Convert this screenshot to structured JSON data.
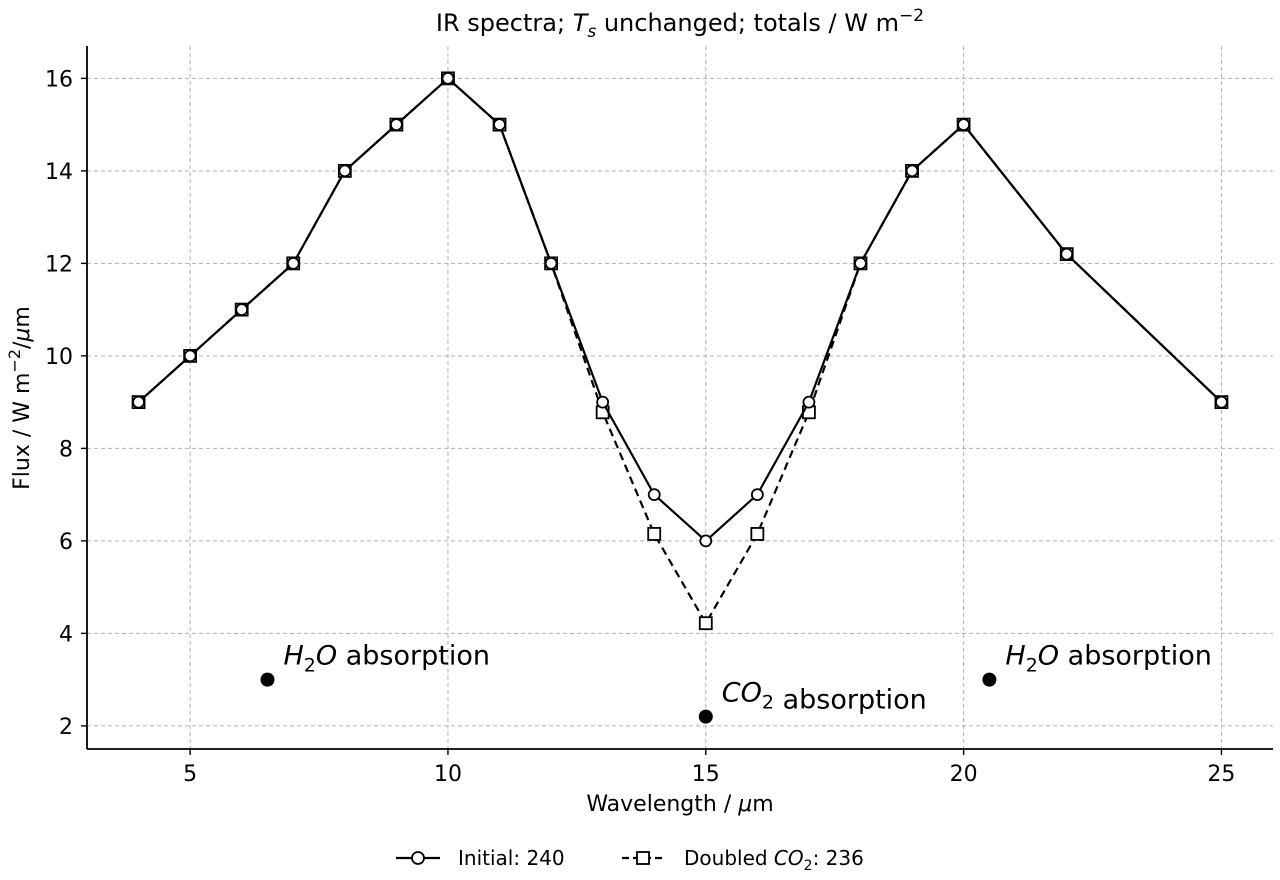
{
  "chart_data": {
    "type": "line",
    "title": {
      "prefix": "IR spectra; ",
      "symbol": "T",
      "symbol_sub": "s",
      "suffix": " unchanged; totals / W m",
      "sup": "−2"
    },
    "xlabel": {
      "text": "Wavelength / ",
      "unit": "μ",
      "unit_rest": "m"
    },
    "ylabel": {
      "text": "Flux / W m",
      "sup": "−2",
      "mid": "/",
      "unit": "μ",
      "unit_rest": "m"
    },
    "xlim": [
      3,
      26
    ],
    "ylim": [
      1.5,
      16.7
    ],
    "xticks": [
      5,
      10,
      15,
      20,
      25
    ],
    "yticks": [
      2,
      4,
      6,
      8,
      10,
      12,
      14,
      16
    ],
    "grid": true,
    "legend_position": "bottom-center",
    "series": [
      {
        "name": "Initial",
        "legend_text": "Initial: 240",
        "marker": "circle",
        "linestyle": "solid",
        "x": [
          4,
          5,
          6,
          7,
          8,
          9,
          10,
          11,
          12,
          13,
          14,
          15,
          16,
          17,
          18,
          19,
          20,
          22,
          25
        ],
        "y": [
          9,
          10,
          11,
          12,
          14,
          15,
          16,
          15,
          12,
          9,
          7,
          6,
          7,
          9,
          12,
          14,
          15,
          12.2,
          9
        ]
      },
      {
        "name": "Doubled CO2",
        "legend_prefix": "Doubled ",
        "legend_symbol": "CO",
        "legend_sub": "2",
        "legend_suffix": ": 236",
        "marker": "square",
        "linestyle": "dashed",
        "x": [
          4,
          5,
          6,
          7,
          8,
          9,
          10,
          11,
          12,
          13,
          14,
          15,
          16,
          17,
          18,
          19,
          20,
          22,
          25
        ],
        "y": [
          9,
          10,
          11,
          12,
          14,
          15,
          16,
          15,
          12,
          8.78,
          6.15,
          4.22,
          6.15,
          8.78,
          12,
          14,
          15,
          12.2,
          9
        ]
      }
    ],
    "annotations": [
      {
        "x": 6.5,
        "y": 3.0,
        "symbol": "H",
        "sub": "2",
        "symbol2": "O",
        "text": " absorption"
      },
      {
        "x": 15.0,
        "y": 2.2,
        "symbol": "CO",
        "sub": "2",
        "symbol2": "",
        "text": " absorption"
      },
      {
        "x": 20.5,
        "y": 3.0,
        "symbol": "H",
        "sub": "2",
        "symbol2": "O",
        "text": " absorption"
      }
    ]
  }
}
